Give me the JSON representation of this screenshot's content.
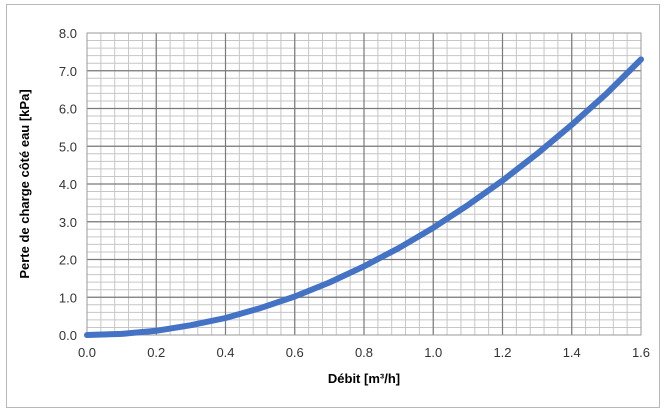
{
  "chart_data": {
    "type": "line",
    "xlabel": "Débit [m³/h]",
    "ylabel": "Perte de charge côté eau [kPa]",
    "xlim": [
      0.0,
      1.6
    ],
    "ylim": [
      0.0,
      8.0
    ],
    "x_ticks": [
      "0.0",
      "0.2",
      "0.4",
      "0.6",
      "0.8",
      "1.0",
      "1.2",
      "1.4",
      "1.6"
    ],
    "y_ticks": [
      "0.0",
      "1.0",
      "2.0",
      "3.0",
      "4.0",
      "5.0",
      "6.0",
      "7.0",
      "8.0"
    ],
    "grid": {
      "major": true,
      "minor": true
    },
    "series": [
      {
        "x": [
          0.0,
          0.1,
          0.2,
          0.3,
          0.4,
          0.5,
          0.6,
          0.7,
          0.8,
          0.9,
          1.0,
          1.1,
          1.2,
          1.3,
          1.4,
          1.5,
          1.6
        ],
        "y": [
          0.0,
          0.03,
          0.11,
          0.26,
          0.45,
          0.71,
          1.02,
          1.39,
          1.82,
          2.3,
          2.84,
          3.44,
          4.09,
          4.8,
          5.57,
          6.39,
          7.3
        ],
        "color": "#4472c4"
      }
    ]
  }
}
